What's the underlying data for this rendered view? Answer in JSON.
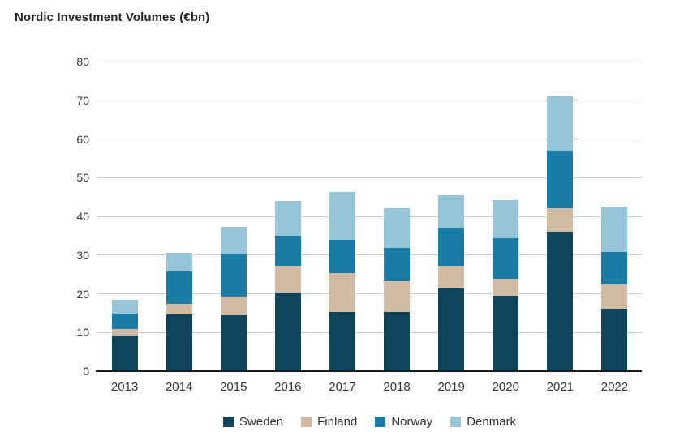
{
  "title": "Nordic Investment Volumes (€bn)",
  "colors": {
    "background": "#ffffff",
    "title_text": "#222222",
    "tick_text": "#333333",
    "legend_text": "#333333",
    "gridline": "#cccccc",
    "axis_line": "#1a1a1a",
    "sweden": "#0e455c",
    "finland": "#d0baa2",
    "norway": "#1a7ba4",
    "denmark": "#96c5d9"
  },
  "chart_data": {
    "type": "bar",
    "stacked": true,
    "title": "Nordic Investment Volumes (€bn)",
    "xlabel": "",
    "ylabel": "",
    "categories": [
      "2013",
      "2014",
      "2015",
      "2016",
      "2017",
      "2018",
      "2019",
      "2020",
      "2021",
      "2022"
    ],
    "series": [
      {
        "name": "Sweden",
        "color": "#0e455c",
        "values": [
          9.0,
          14.7,
          14.5,
          20.3,
          15.3,
          15.2,
          21.3,
          19.5,
          36.0,
          16.2
        ]
      },
      {
        "name": "Finland",
        "color": "#d0baa2",
        "values": [
          1.8,
          2.6,
          4.7,
          7.0,
          10.0,
          8.1,
          6.0,
          4.4,
          6.0,
          6.2
        ]
      },
      {
        "name": "Norway",
        "color": "#1a7ba4",
        "values": [
          4.0,
          8.5,
          11.2,
          7.7,
          8.6,
          8.6,
          9.8,
          10.5,
          15.0,
          8.4
        ]
      },
      {
        "name": "Denmark",
        "color": "#96c5d9",
        "values": [
          3.7,
          4.8,
          6.9,
          8.9,
          12.4,
          10.3,
          8.4,
          9.7,
          14.0,
          11.7
        ]
      }
    ],
    "totals": [
      18.5,
      30.6,
      37.3,
      43.9,
      46.3,
      42.2,
      45.5,
      44.1,
      71.0,
      42.5
    ],
    "ylim": [
      0,
      80
    ],
    "y_ticks": [
      0,
      10,
      20,
      30,
      40,
      50,
      60,
      70,
      80
    ],
    "grid": "horizontal",
    "legend_position": "bottom-center"
  }
}
